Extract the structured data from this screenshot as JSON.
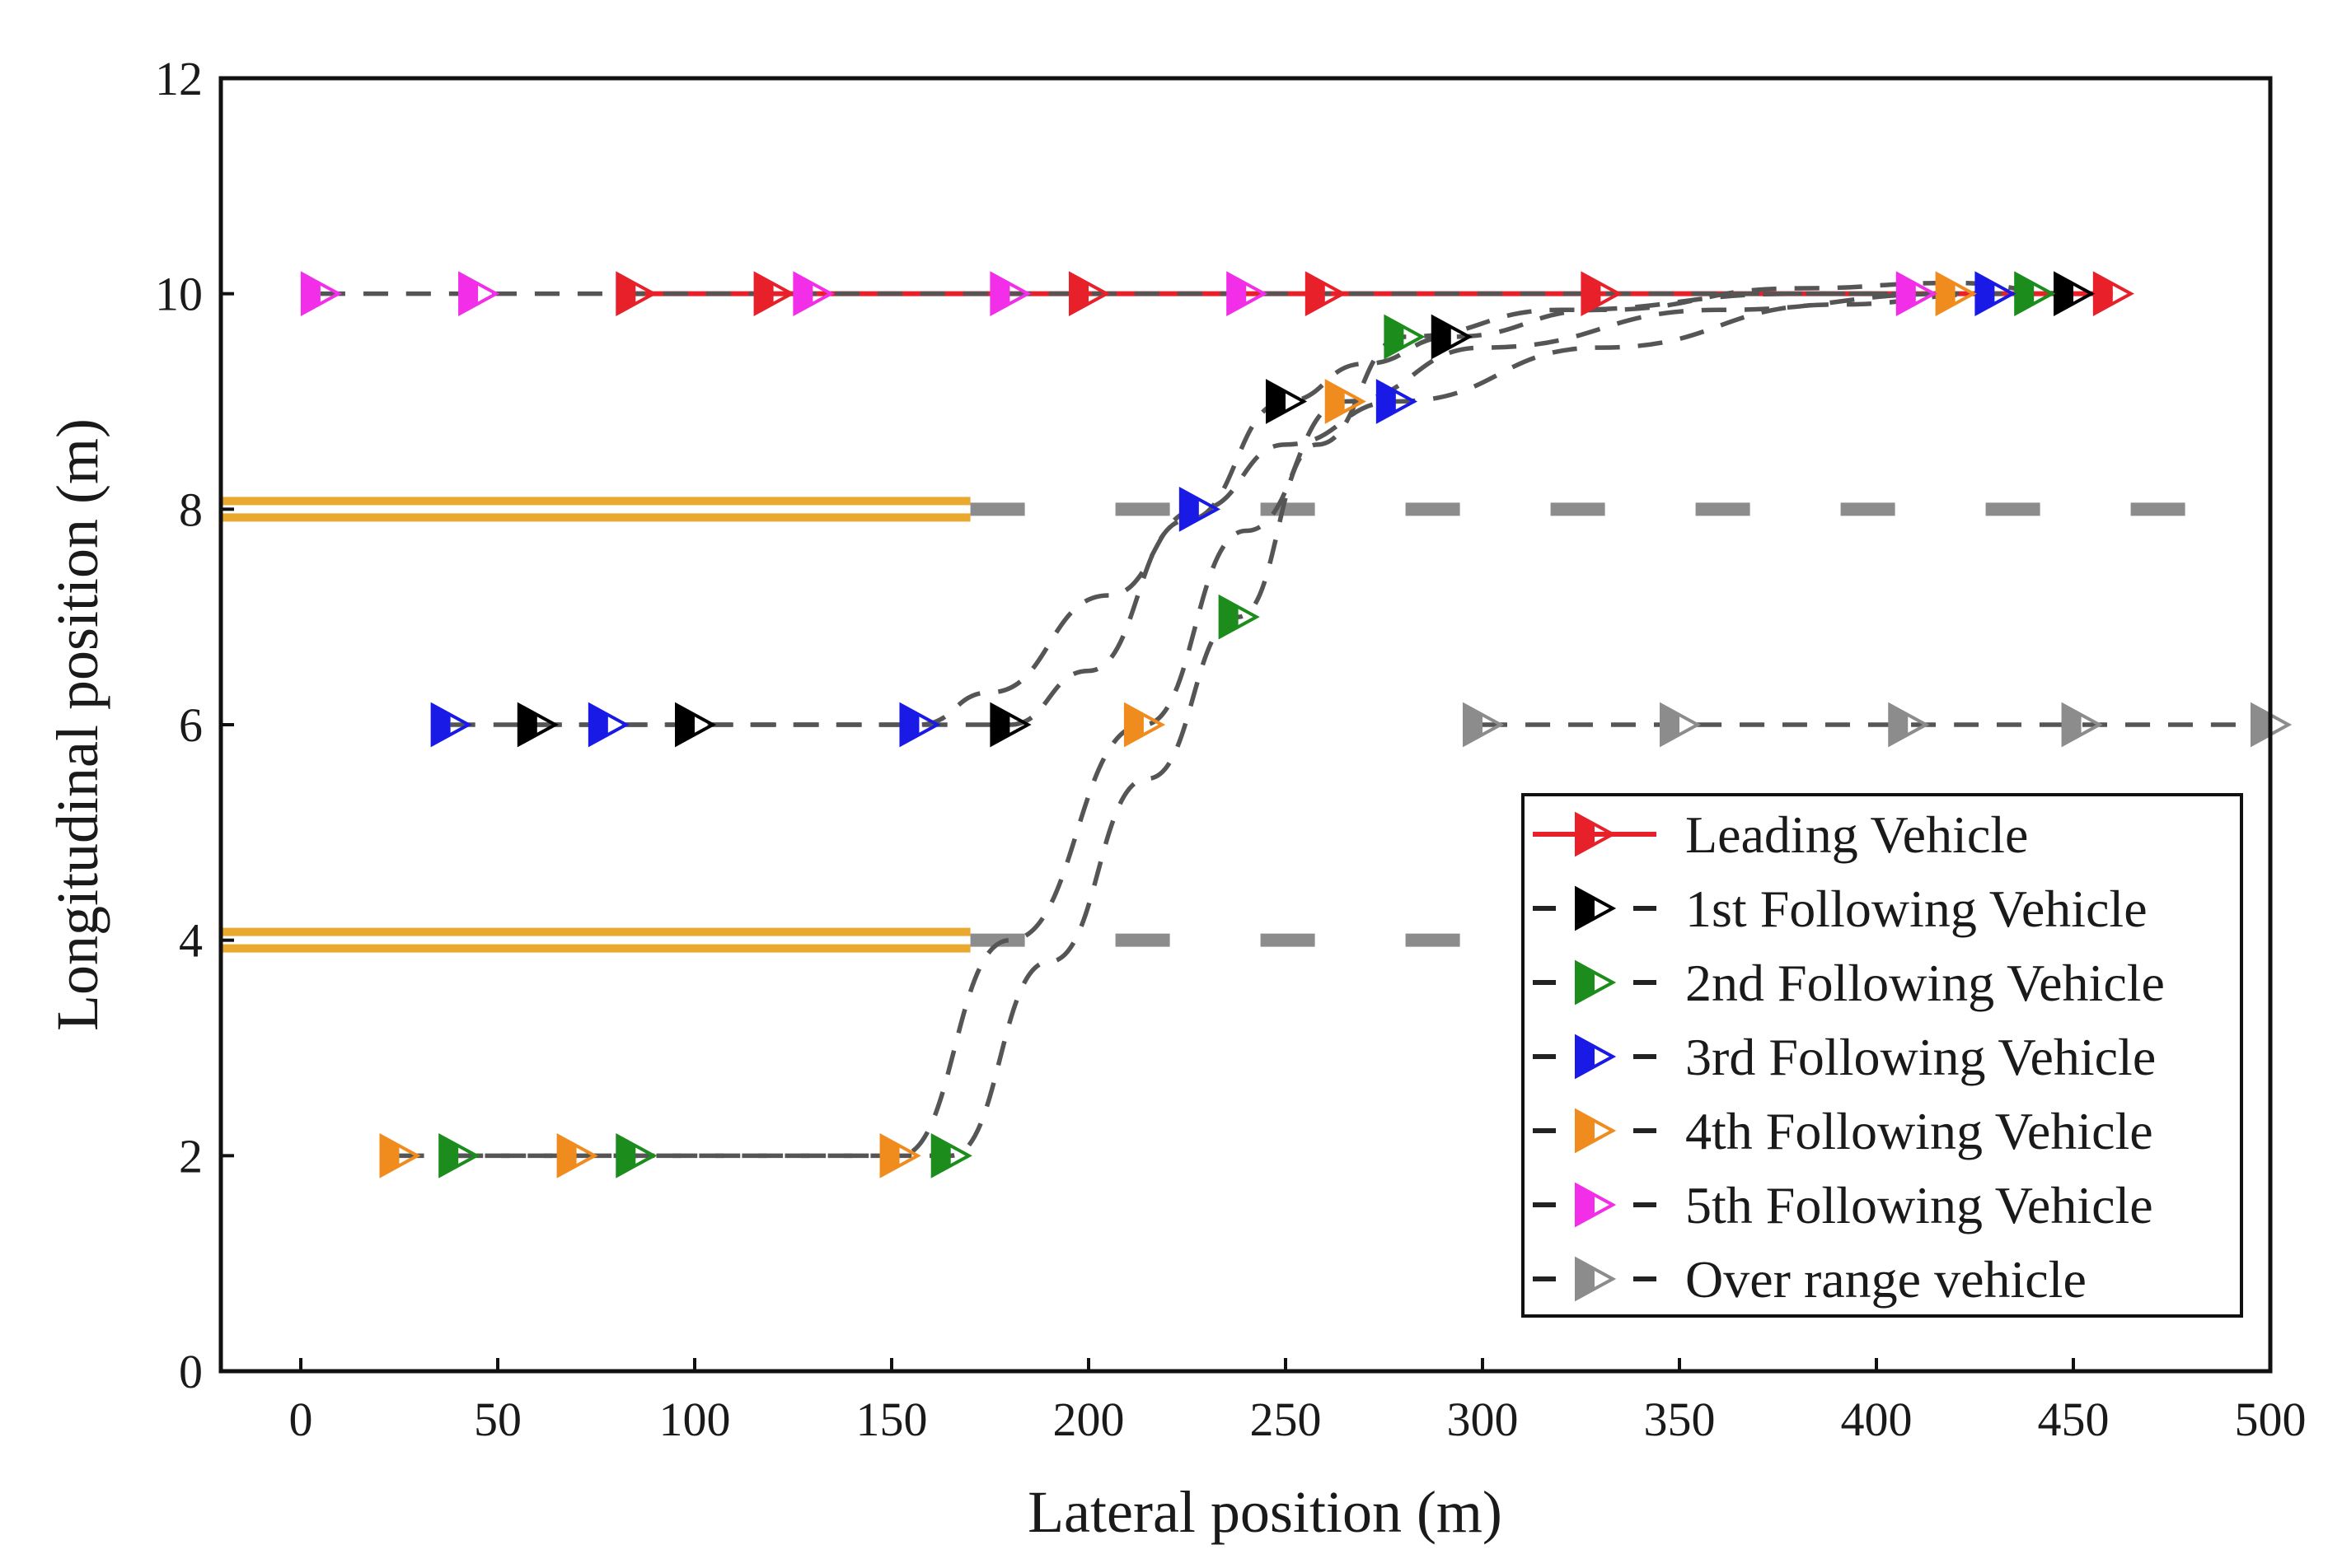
{
  "chart_data": {
    "type": "line",
    "title": "",
    "xlabel": "Lateral position (m)",
    "ylabel": "Longitudinal position (m)",
    "xlim": [
      -20,
      500
    ],
    "ylim": [
      0,
      12
    ],
    "xticks": [
      "0",
      "50",
      "100",
      "150",
      "200",
      "250",
      "300",
      "350",
      "400",
      "450",
      "500"
    ],
    "yticks": [
      "0",
      "2",
      "4",
      "6",
      "8",
      "10",
      "12"
    ],
    "lane_markings": [
      {
        "kind": "solid-double",
        "color": "#e8a92e",
        "y": 8.0,
        "x": [
          -20,
          170
        ]
      },
      {
        "kind": "solid-double",
        "color": "#e8a92e",
        "y": 4.0,
        "x": [
          -20,
          170
        ]
      },
      {
        "kind": "dashed",
        "color": "#8c8c8c",
        "y": 8.0,
        "x": [
          170,
          485
        ]
      },
      {
        "kind": "dashed",
        "color": "#8c8c8c",
        "y": 4.0,
        "x": [
          170,
          305
        ]
      }
    ],
    "series": [
      {
        "name": "Leading Vehicle",
        "color": "#e8202a",
        "line": "solid",
        "x": [
          85,
          120,
          130,
          200,
          260,
          330,
          460
        ],
        "y": [
          10,
          10,
          10,
          10,
          10,
          10,
          10
        ],
        "markers": [
          85,
          120,
          200,
          260,
          330,
          460
        ]
      },
      {
        "name": "1st Following Vehicle",
        "color": "#000000",
        "line": "dashed",
        "x": [
          60,
          100,
          150,
          165,
          180,
          200,
          225,
          250,
          270,
          292,
          330,
          380,
          420,
          450
        ],
        "y": [
          6,
          6,
          6,
          6,
          6,
          6.5,
          7.9,
          9.0,
          9.35,
          9.6,
          9.85,
          10.05,
          10.1,
          10
        ],
        "markers": [
          60,
          100,
          180,
          250,
          292,
          450
        ]
      },
      {
        "name": "2nd Following Vehicle",
        "color": "#1c8c1c",
        "line": "dashed",
        "x": [
          40,
          85,
          150,
          165,
          190,
          215,
          238,
          258,
          280,
          320,
          380,
          440
        ],
        "y": [
          2,
          2,
          2,
          2,
          3.8,
          5.5,
          7.0,
          8.6,
          9.6,
          9.85,
          10.0,
          10
        ],
        "markers": [
          40,
          85,
          165,
          238,
          280,
          440
        ]
      },
      {
        "name": "3rd Following Vehicle",
        "color": "#1a1ae6",
        "line": "dashed",
        "x": [
          38,
          78,
          120,
          157,
          175,
          205,
          228,
          250,
          278,
          330,
          390,
          430
        ],
        "y": [
          6,
          6,
          6,
          6,
          6.3,
          7.2,
          8.0,
          8.6,
          9.0,
          9.5,
          9.9,
          10
        ],
        "markers": [
          38,
          78,
          157,
          228,
          278,
          430
        ]
      },
      {
        "name": "4th Following Vehicle",
        "color": "#f08c1e",
        "line": "dashed",
        "x": [
          25,
          70,
          120,
          152,
          180,
          214,
          240,
          265,
          300,
          360,
          420
        ],
        "y": [
          2,
          2,
          2,
          2,
          4.0,
          6.0,
          7.8,
          9.0,
          9.5,
          9.85,
          10
        ],
        "markers": [
          25,
          70,
          152,
          214,
          265,
          420
        ]
      },
      {
        "name": "5th Following Vehicle",
        "color": "#f22ee8",
        "line": "dashed",
        "x": [
          5,
          45,
          130,
          180,
          240,
          410
        ],
        "y": [
          10,
          10,
          10,
          10,
          10,
          10
        ],
        "markers": [
          5,
          45,
          130,
          180,
          240,
          410
        ]
      },
      {
        "name": "Over range vehicle",
        "color": "#8c8c8c",
        "line": "dashed",
        "x": [
          300,
          350,
          408,
          452,
          500
        ],
        "y": [
          6,
          6,
          6,
          6,
          6
        ],
        "markers": [
          300,
          350,
          408,
          452,
          500
        ]
      }
    ],
    "legend_position": "lower-right"
  }
}
